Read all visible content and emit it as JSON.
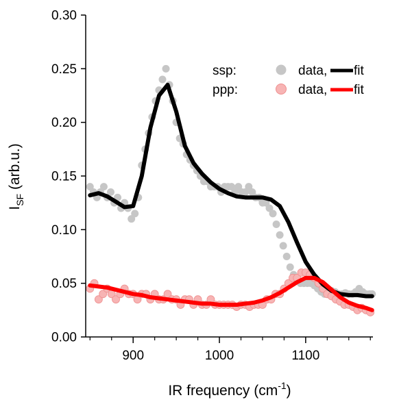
{
  "chart_data": {
    "type": "scatter",
    "xlabel": {
      "main": "IR frequency (cm",
      "sup": "-1",
      "close": ")"
    },
    "ylabel": {
      "main": "I",
      "sub": "SF",
      "rest": " (arb.u.)"
    },
    "xlim": [
      845,
      1178
    ],
    "ylim": [
      0.0,
      0.3
    ],
    "x_ticks": [
      900,
      1000,
      1100
    ],
    "x_tick_labels": [
      "900",
      "1000",
      "1100"
    ],
    "x_minor_step": 25,
    "y_ticks": [
      0.0,
      0.05,
      0.1,
      0.15,
      0.2,
      0.25,
      0.3
    ],
    "y_tick_labels": [
      "0.00",
      "0.05",
      "0.10",
      "0.15",
      "0.20",
      "0.25",
      "0.30"
    ],
    "grid": false,
    "legend_position": "top-right",
    "legend": [
      {
        "prefix": "ssp:",
        "data_label": "data,",
        "fit_label": "fit"
      },
      {
        "prefix": "ppp:",
        "data_label": "data,",
        "fit_label": "fit"
      }
    ],
    "colors": {
      "ssp_data": "#c6c6c6",
      "ssp_fit": "#000000",
      "ppp_data": "#f7b4b4",
      "ppp_data_edge": "#ee8e8e",
      "ppp_fit": "#ff0000"
    },
    "series": [
      {
        "kind": "data",
        "x": [
          850,
          854,
          858,
          862,
          866,
          870,
          874,
          878,
          882,
          886,
          890,
          894,
          898,
          902,
          906,
          910,
          914,
          918,
          922,
          926,
          930,
          934,
          938,
          942,
          946,
          950,
          954,
          958,
          962,
          966,
          970,
          974,
          978,
          982,
          986,
          990,
          994,
          998,
          1002,
          1006,
          1010,
          1014,
          1018,
          1022,
          1026,
          1030,
          1034,
          1038,
          1042,
          1046,
          1050,
          1054,
          1058,
          1062,
          1066,
          1070,
          1074,
          1078,
          1082,
          1086,
          1090,
          1094,
          1098,
          1102,
          1106,
          1110,
          1114,
          1118,
          1122,
          1126,
          1130,
          1134,
          1138,
          1142,
          1146,
          1150,
          1154,
          1158,
          1162,
          1166,
          1170,
          1174,
          1177
        ],
        "y": [
          0.14,
          0.135,
          0.13,
          0.135,
          0.14,
          0.13,
          0.135,
          0.125,
          0.13,
          0.12,
          0.125,
          0.12,
          0.11,
          0.115,
          0.13,
          0.16,
          0.175,
          0.19,
          0.205,
          0.22,
          0.23,
          0.24,
          0.25,
          0.235,
          0.22,
          0.2,
          0.185,
          0.18,
          0.17,
          0.165,
          0.16,
          0.155,
          0.15,
          0.145,
          0.145,
          0.14,
          0.14,
          0.14,
          0.135,
          0.14,
          0.14,
          0.14,
          0.135,
          0.14,
          0.135,
          0.135,
          0.14,
          0.135,
          0.13,
          0.13,
          0.125,
          0.125,
          0.12,
          0.115,
          0.105,
          0.095,
          0.085,
          0.075,
          0.065,
          0.058,
          0.052,
          0.05,
          0.05,
          0.05,
          0.05,
          0.048,
          0.045,
          0.042,
          0.04,
          0.042,
          0.043,
          0.042,
          0.04,
          0.04,
          0.041,
          0.04,
          0.04,
          0.042,
          0.045,
          0.042,
          0.04,
          0.04,
          0.04
        ]
      },
      {
        "kind": "fit",
        "x": [
          850,
          860,
          870,
          880,
          890,
          900,
          910,
          920,
          930,
          940,
          950,
          960,
          970,
          980,
          990,
          1000,
          1010,
          1020,
          1030,
          1040,
          1050,
          1060,
          1070,
          1080,
          1090,
          1100,
          1110,
          1120,
          1130,
          1140,
          1150,
          1160,
          1170,
          1177
        ],
        "y": [
          0.132,
          0.134,
          0.131,
          0.126,
          0.121,
          0.122,
          0.15,
          0.195,
          0.225,
          0.235,
          0.21,
          0.178,
          0.162,
          0.152,
          0.144,
          0.138,
          0.134,
          0.131,
          0.13,
          0.13,
          0.13,
          0.128,
          0.122,
          0.107,
          0.088,
          0.07,
          0.058,
          0.049,
          0.043,
          0.04,
          0.039,
          0.039,
          0.038,
          0.038
        ]
      },
      {
        "kind": "data",
        "x": [
          850,
          855,
          860,
          865,
          870,
          875,
          880,
          885,
          890,
          895,
          900,
          905,
          910,
          915,
          920,
          925,
          930,
          935,
          940,
          945,
          950,
          955,
          960,
          965,
          970,
          975,
          980,
          985,
          990,
          995,
          1000,
          1005,
          1010,
          1015,
          1020,
          1025,
          1030,
          1035,
          1040,
          1045,
          1050,
          1055,
          1060,
          1065,
          1070,
          1075,
          1080,
          1085,
          1090,
          1095,
          1100,
          1105,
          1110,
          1115,
          1120,
          1125,
          1130,
          1135,
          1140,
          1145,
          1150,
          1155,
          1160,
          1165,
          1170,
          1175
        ],
        "y": [
          0.045,
          0.05,
          0.035,
          0.04,
          0.045,
          0.04,
          0.035,
          0.04,
          0.045,
          0.04,
          0.04,
          0.035,
          0.04,
          0.04,
          0.035,
          0.04,
          0.035,
          0.035,
          0.04,
          0.035,
          0.035,
          0.03,
          0.035,
          0.035,
          0.03,
          0.035,
          0.03,
          0.03,
          0.035,
          0.03,
          0.03,
          0.03,
          0.03,
          0.03,
          0.028,
          0.03,
          0.03,
          0.028,
          0.03,
          0.03,
          0.03,
          0.035,
          0.035,
          0.04,
          0.04,
          0.045,
          0.05,
          0.055,
          0.055,
          0.06,
          0.06,
          0.058,
          0.055,
          0.05,
          0.045,
          0.04,
          0.038,
          0.035,
          0.033,
          0.03,
          0.03,
          0.028,
          0.025,
          0.027,
          0.025,
          0.023
        ]
      },
      {
        "kind": "fit",
        "x": [
          850,
          860,
          870,
          880,
          890,
          900,
          910,
          920,
          930,
          940,
          950,
          960,
          970,
          980,
          990,
          1000,
          1010,
          1020,
          1030,
          1040,
          1050,
          1060,
          1070,
          1080,
          1090,
          1100,
          1110,
          1120,
          1130,
          1140,
          1150,
          1160,
          1170,
          1177
        ],
        "y": [
          0.048,
          0.047,
          0.046,
          0.044,
          0.042,
          0.04,
          0.039,
          0.037,
          0.036,
          0.035,
          0.034,
          0.033,
          0.032,
          0.031,
          0.031,
          0.03,
          0.03,
          0.03,
          0.031,
          0.032,
          0.034,
          0.037,
          0.041,
          0.046,
          0.051,
          0.055,
          0.055,
          0.051,
          0.044,
          0.037,
          0.032,
          0.029,
          0.027,
          0.025
        ]
      }
    ]
  }
}
